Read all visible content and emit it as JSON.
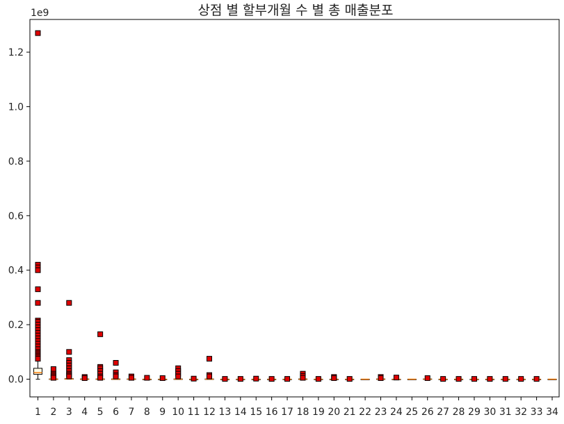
{
  "chart_data": {
    "type": "boxplot",
    "title": "상점 별 할부개월 수 별 총 매출분포",
    "xlabel": "",
    "ylabel": "",
    "y_offset_label": "1e9",
    "ylim": [
      -0.065,
      1.32
    ],
    "yticks": [
      "0.0",
      "0.2",
      "0.4",
      "0.6",
      "0.8",
      "1.0",
      "1.2"
    ],
    "ytick_values": [
      0.0,
      0.2,
      0.4,
      0.6,
      0.8,
      1.0,
      1.2
    ],
    "categories": [
      "1",
      "2",
      "3",
      "4",
      "5",
      "6",
      "7",
      "8",
      "9",
      "10",
      "11",
      "12",
      "13",
      "14",
      "15",
      "16",
      "17",
      "18",
      "19",
      "20",
      "21",
      "22",
      "23",
      "24",
      "25",
      "26",
      "27",
      "28",
      "29",
      "30",
      "31",
      "32",
      "33",
      "34"
    ],
    "grid": false,
    "box_color": "#fffbe6",
    "median_color": "#ff7f0e",
    "flier_color": "#e00000",
    "boxes": [
      {
        "q1": 0.018,
        "q3": 0.04,
        "med": 0.024,
        "whislo": 0.0,
        "whishi": 0.07
      },
      {
        "q1": 0.0,
        "q3": 0.001,
        "med": 0.0,
        "whislo": 0.0,
        "whishi": 0.002
      },
      {
        "q1": 0.0,
        "q3": 0.002,
        "med": 0.0005,
        "whislo": 0.0,
        "whishi": 0.005
      },
      {
        "q1": 0.0,
        "q3": 0.001,
        "med": 0.0,
        "whislo": 0.0,
        "whishi": 0.002
      },
      {
        "q1": 0.0,
        "q3": 0.001,
        "med": 0.0,
        "whislo": 0.0,
        "whishi": 0.002
      },
      {
        "q1": 0.0,
        "q3": 0.001,
        "med": 0.0,
        "whislo": 0.0,
        "whishi": 0.002
      },
      {
        "q1": 0.0,
        "q3": 0.001,
        "med": 0.0,
        "whislo": 0.0,
        "whishi": 0.002
      },
      {
        "q1": 0.0,
        "q3": 0.0,
        "med": 0.0,
        "whislo": 0.0,
        "whishi": 0.001
      },
      {
        "q1": 0.0,
        "q3": 0.0,
        "med": 0.0,
        "whislo": 0.0,
        "whishi": 0.001
      },
      {
        "q1": 0.0,
        "q3": 0.001,
        "med": 0.0,
        "whislo": 0.0,
        "whishi": 0.002
      },
      {
        "q1": 0.0,
        "q3": 0.0,
        "med": 0.0,
        "whislo": 0.0,
        "whishi": 0.001
      },
      {
        "q1": 0.0,
        "q3": 0.001,
        "med": 0.0,
        "whislo": 0.0,
        "whishi": 0.002
      },
      {
        "q1": 0.0,
        "q3": 0.0,
        "med": 0.0,
        "whislo": 0.0,
        "whishi": 0.0
      },
      {
        "q1": 0.0,
        "q3": 0.0,
        "med": 0.0,
        "whislo": 0.0,
        "whishi": 0.0
      },
      {
        "q1": 0.0,
        "q3": 0.0,
        "med": 0.0,
        "whislo": 0.0,
        "whishi": 0.0
      },
      {
        "q1": 0.0,
        "q3": 0.0,
        "med": 0.0,
        "whislo": 0.0,
        "whishi": 0.0
      },
      {
        "q1": 0.0,
        "q3": 0.0,
        "med": 0.0,
        "whislo": 0.0,
        "whishi": 0.0
      },
      {
        "q1": 0.0,
        "q3": 0.001,
        "med": 0.0,
        "whislo": 0.0,
        "whishi": 0.002
      },
      {
        "q1": 0.0,
        "q3": 0.0,
        "med": 0.0,
        "whislo": 0.0,
        "whishi": 0.0
      },
      {
        "q1": 0.0,
        "q3": 0.0,
        "med": 0.0,
        "whislo": 0.0,
        "whishi": 0.001
      },
      {
        "q1": 0.0,
        "q3": 0.0,
        "med": 0.0,
        "whislo": 0.0,
        "whishi": 0.0
      },
      {
        "q1": 0.0,
        "q3": 0.0,
        "med": 0.0,
        "whislo": 0.0,
        "whishi": 0.0
      },
      {
        "q1": 0.0,
        "q3": 0.001,
        "med": 0.0,
        "whislo": 0.0,
        "whishi": 0.002
      },
      {
        "q1": 0.0,
        "q3": 0.0,
        "med": 0.0,
        "whislo": 0.0,
        "whishi": 0.001
      },
      {
        "q1": 0.0,
        "q3": 0.0,
        "med": 0.0,
        "whislo": 0.0,
        "whishi": 0.0
      },
      {
        "q1": 0.0,
        "q3": 0.001,
        "med": 0.0,
        "whislo": 0.0,
        "whishi": 0.002
      },
      {
        "q1": 0.0,
        "q3": 0.0,
        "med": 0.0,
        "whislo": 0.0,
        "whishi": 0.0
      },
      {
        "q1": 0.0,
        "q3": 0.0,
        "med": 0.0,
        "whislo": 0.0,
        "whishi": 0.0
      },
      {
        "q1": 0.0,
        "q3": 0.0,
        "med": 0.0,
        "whislo": 0.0,
        "whishi": 0.0
      },
      {
        "q1": 0.0,
        "q3": 0.0,
        "med": 0.0,
        "whislo": 0.0,
        "whishi": 0.0
      },
      {
        "q1": 0.0,
        "q3": 0.0,
        "med": 0.0,
        "whislo": 0.0,
        "whishi": 0.0
      },
      {
        "q1": 0.0,
        "q3": 0.0,
        "med": 0.0,
        "whislo": 0.0,
        "whishi": 0.0
      },
      {
        "q1": 0.0,
        "q3": 0.0,
        "med": 0.0,
        "whislo": 0.0,
        "whishi": 0.0
      },
      {
        "q1": 0.0,
        "q3": 0.0,
        "med": 0.0,
        "whislo": 0.0,
        "whishi": 0.0
      }
    ],
    "fliers": [
      [
        1.27,
        0.42,
        0.41,
        0.4,
        0.33,
        0.28,
        0.215,
        0.21,
        0.2,
        0.19,
        0.18,
        0.17,
        0.16,
        0.15,
        0.14,
        0.13,
        0.12,
        0.11,
        0.1,
        0.095,
        0.09,
        0.085,
        0.08,
        0.075
      ],
      [
        0.037,
        0.02,
        0.015,
        0.01,
        0.005
      ],
      [
        0.28,
        0.1,
        0.07,
        0.06,
        0.05,
        0.04,
        0.03,
        0.02,
        0.015,
        0.01
      ],
      [
        0.008,
        0.004
      ],
      [
        0.165,
        0.045,
        0.04,
        0.03,
        0.02,
        0.01,
        0.005
      ],
      [
        0.06,
        0.025,
        0.015,
        0.01
      ],
      [
        0.01,
        0.005
      ],
      [
        0.005
      ],
      [
        0.004
      ],
      [
        0.04,
        0.03,
        0.02,
        0.01
      ],
      [
        0.002
      ],
      [
        0.075,
        0.015,
        0.01
      ],
      [
        0.001
      ],
      [
        0.001
      ],
      [
        0.002
      ],
      [
        0.001
      ],
      [
        0.001
      ],
      [
        0.02,
        0.012,
        0.005
      ],
      [
        0.001
      ],
      [
        0.008,
        0.004
      ],
      [
        0.001
      ],
      [],
      [
        0.008,
        0.004
      ],
      [
        0.006
      ],
      [],
      [
        0.004
      ],
      [
        0.001
      ],
      [
        0.001
      ],
      [
        0.001
      ],
      [
        0.001
      ],
      [
        0.001
      ],
      [
        0.001
      ],
      [
        0.001
      ],
      []
    ]
  }
}
